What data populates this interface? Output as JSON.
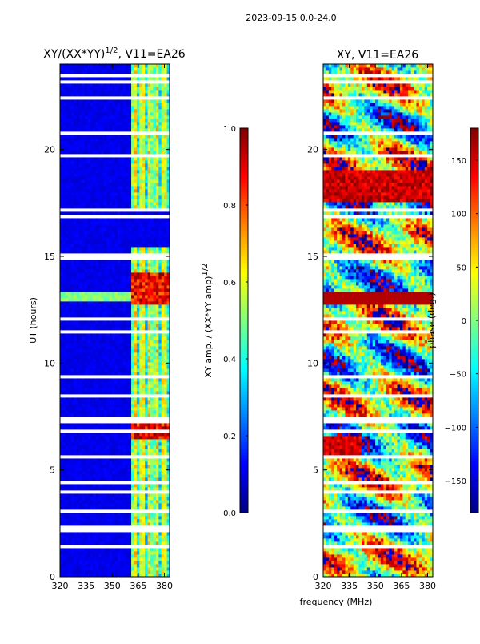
{
  "header": {
    "title": "2023-09-15 0.0-24.0"
  },
  "chart_data": [
    {
      "type": "heatmap",
      "title_main": "XY/(XX*YY)",
      "title_exp": "1/2",
      "title_suffix": ", V11=EA26",
      "xlabel": "",
      "ylabel": "UT (hours)",
      "xlim": [
        320,
        383
      ],
      "ylim": [
        0,
        24
      ],
      "xticks": [
        320,
        335,
        350,
        365,
        380
      ],
      "yticks": [
        0,
        5,
        10,
        15,
        20
      ],
      "grid": false,
      "colorbar": {
        "label_main": "XY amp. / (XX*YY amp)",
        "label_exp": "1/2",
        "range": [
          0.0,
          1.0
        ],
        "ticks": [
          "0.0",
          "0.2",
          "0.4",
          "0.6",
          "0.8",
          "1.0"
        ],
        "tick_values": [
          0.0,
          0.2,
          0.4,
          0.6,
          0.8,
          1.0
        ],
        "colormap": "jet"
      }
    },
    {
      "type": "heatmap",
      "title": "XY, V11=EA26",
      "xlabel": "frequency (MHz)",
      "ylabel": "",
      "xlim": [
        320,
        383
      ],
      "ylim": [
        0,
        24
      ],
      "xticks": [
        320,
        335,
        350,
        365,
        380
      ],
      "yticks": [
        0,
        5,
        10,
        15,
        20
      ],
      "grid": false,
      "colorbar": {
        "label": "phase (deg.)",
        "range": [
          -180,
          180
        ],
        "ticks": [
          "150",
          "100",
          "50",
          "0",
          "−50",
          "−100",
          "−150"
        ],
        "tick_values": [
          150,
          100,
          50,
          0,
          -50,
          -100,
          -150
        ],
        "colormap": "jet"
      }
    }
  ],
  "colors": {
    "jet_low": "#00007f",
    "jet_mid": "#7cff79",
    "jet_high": "#7f0000",
    "flag_gap": "#ffffff"
  }
}
